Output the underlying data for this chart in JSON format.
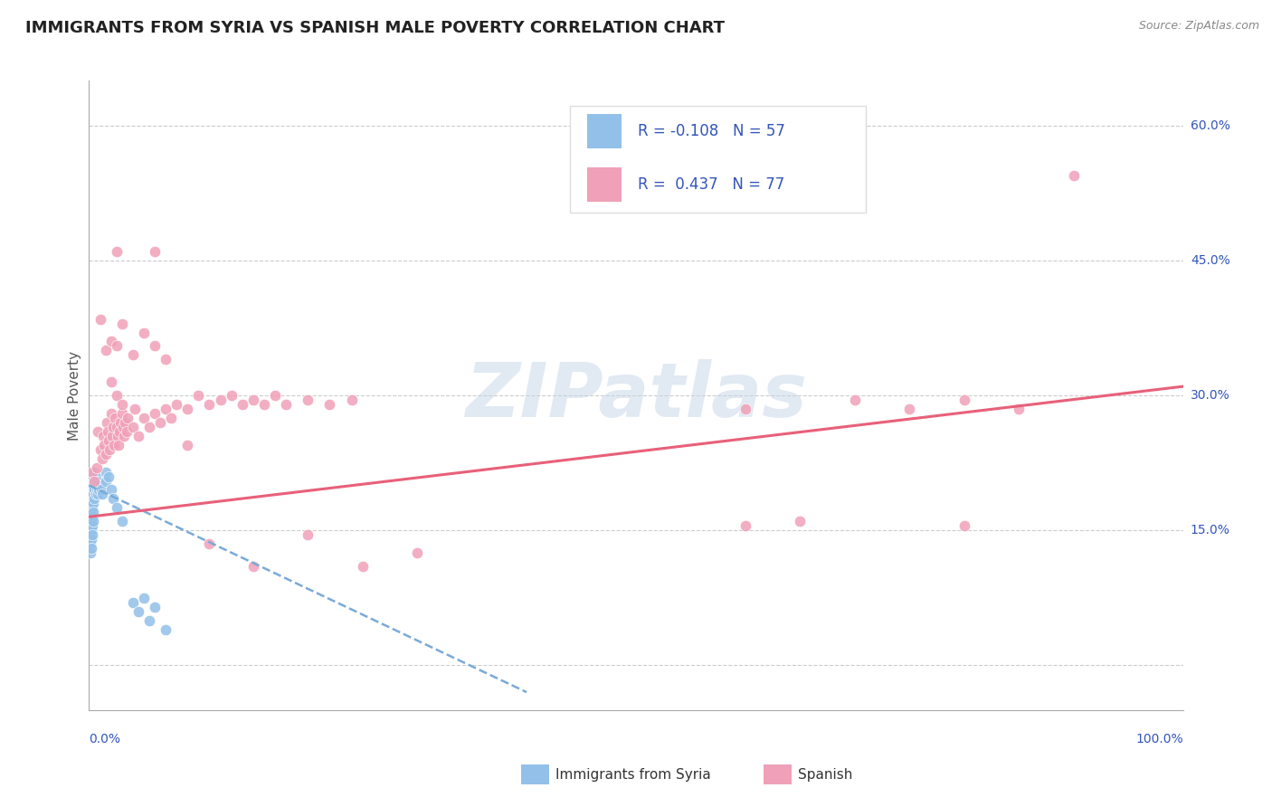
{
  "title": "IMMIGRANTS FROM SYRIA VS SPANISH MALE POVERTY CORRELATION CHART",
  "source": "Source: ZipAtlas.com",
  "ylabel": "Male Poverty",
  "y_ticks": [
    0.0,
    0.15,
    0.3,
    0.45,
    0.6
  ],
  "y_tick_labels": [
    "",
    "15.0%",
    "30.0%",
    "45.0%",
    "60.0%"
  ],
  "x_range": [
    0.0,
    1.0
  ],
  "y_range": [
    -0.05,
    0.65
  ],
  "watermark_text": "ZIPatlas",
  "blue_color": "#92C0E8",
  "pink_color": "#F0A0B8",
  "line_blue_color": "#7AAAD8",
  "line_pink_color": "#E8607A",
  "grid_color": "#CCCCCC",
  "text_blue": "#3355BB",
  "title_color": "#222222",
  "source_color": "#888888",
  "legend_box_color": "#DDDDDD",
  "blue_scatter": [
    [
      0.001,
      0.195
    ],
    [
      0.001,
      0.185
    ],
    [
      0.001,
      0.175
    ],
    [
      0.001,
      0.165
    ],
    [
      0.001,
      0.155
    ],
    [
      0.001,
      0.145
    ],
    [
      0.001,
      0.135
    ],
    [
      0.001,
      0.125
    ],
    [
      0.002,
      0.2
    ],
    [
      0.002,
      0.19
    ],
    [
      0.002,
      0.18
    ],
    [
      0.002,
      0.17
    ],
    [
      0.002,
      0.16
    ],
    [
      0.002,
      0.15
    ],
    [
      0.002,
      0.14
    ],
    [
      0.002,
      0.13
    ],
    [
      0.003,
      0.205
    ],
    [
      0.003,
      0.195
    ],
    [
      0.003,
      0.185
    ],
    [
      0.003,
      0.175
    ],
    [
      0.003,
      0.165
    ],
    [
      0.003,
      0.155
    ],
    [
      0.003,
      0.145
    ],
    [
      0.004,
      0.21
    ],
    [
      0.004,
      0.2
    ],
    [
      0.004,
      0.19
    ],
    [
      0.004,
      0.18
    ],
    [
      0.004,
      0.17
    ],
    [
      0.004,
      0.16
    ],
    [
      0.005,
      0.215
    ],
    [
      0.005,
      0.205
    ],
    [
      0.005,
      0.195
    ],
    [
      0.005,
      0.185
    ],
    [
      0.006,
      0.21
    ],
    [
      0.006,
      0.2
    ],
    [
      0.006,
      0.19
    ],
    [
      0.007,
      0.205
    ],
    [
      0.007,
      0.195
    ],
    [
      0.008,
      0.2
    ],
    [
      0.008,
      0.19
    ],
    [
      0.009,
      0.195
    ],
    [
      0.01,
      0.2
    ],
    [
      0.011,
      0.195
    ],
    [
      0.012,
      0.19
    ],
    [
      0.015,
      0.215
    ],
    [
      0.015,
      0.205
    ],
    [
      0.018,
      0.21
    ],
    [
      0.02,
      0.195
    ],
    [
      0.022,
      0.185
    ],
    [
      0.025,
      0.175
    ],
    [
      0.03,
      0.16
    ],
    [
      0.04,
      0.07
    ],
    [
      0.045,
      0.06
    ],
    [
      0.05,
      0.075
    ],
    [
      0.055,
      0.05
    ],
    [
      0.06,
      0.065
    ],
    [
      0.07,
      0.04
    ]
  ],
  "pink_scatter": [
    [
      0.003,
      0.215
    ],
    [
      0.005,
      0.205
    ],
    [
      0.007,
      0.22
    ],
    [
      0.008,
      0.26
    ],
    [
      0.01,
      0.24
    ],
    [
      0.012,
      0.23
    ],
    [
      0.013,
      0.255
    ],
    [
      0.014,
      0.245
    ],
    [
      0.015,
      0.235
    ],
    [
      0.016,
      0.27
    ],
    [
      0.017,
      0.26
    ],
    [
      0.018,
      0.25
    ],
    [
      0.019,
      0.24
    ],
    [
      0.02,
      0.28
    ],
    [
      0.021,
      0.255
    ],
    [
      0.022,
      0.265
    ],
    [
      0.023,
      0.245
    ],
    [
      0.024,
      0.275
    ],
    [
      0.025,
      0.265
    ],
    [
      0.026,
      0.255
    ],
    [
      0.027,
      0.245
    ],
    [
      0.028,
      0.26
    ],
    [
      0.029,
      0.27
    ],
    [
      0.03,
      0.28
    ],
    [
      0.031,
      0.265
    ],
    [
      0.032,
      0.255
    ],
    [
      0.033,
      0.27
    ],
    [
      0.034,
      0.26
    ],
    [
      0.035,
      0.275
    ],
    [
      0.04,
      0.265
    ],
    [
      0.042,
      0.285
    ],
    [
      0.045,
      0.255
    ],
    [
      0.05,
      0.275
    ],
    [
      0.055,
      0.265
    ],
    [
      0.06,
      0.28
    ],
    [
      0.065,
      0.27
    ],
    [
      0.07,
      0.285
    ],
    [
      0.075,
      0.275
    ],
    [
      0.08,
      0.29
    ],
    [
      0.09,
      0.285
    ],
    [
      0.1,
      0.3
    ],
    [
      0.11,
      0.29
    ],
    [
      0.12,
      0.295
    ],
    [
      0.13,
      0.3
    ],
    [
      0.14,
      0.29
    ],
    [
      0.15,
      0.295
    ],
    [
      0.16,
      0.29
    ],
    [
      0.17,
      0.3
    ],
    [
      0.18,
      0.29
    ],
    [
      0.2,
      0.295
    ],
    [
      0.22,
      0.29
    ],
    [
      0.24,
      0.295
    ],
    [
      0.02,
      0.315
    ],
    [
      0.025,
      0.3
    ],
    [
      0.03,
      0.29
    ],
    [
      0.01,
      0.385
    ],
    [
      0.015,
      0.35
    ],
    [
      0.02,
      0.36
    ],
    [
      0.025,
      0.355
    ],
    [
      0.03,
      0.38
    ],
    [
      0.04,
      0.345
    ],
    [
      0.05,
      0.37
    ],
    [
      0.06,
      0.355
    ],
    [
      0.07,
      0.34
    ],
    [
      0.06,
      0.46
    ],
    [
      0.025,
      0.46
    ],
    [
      0.09,
      0.245
    ],
    [
      0.11,
      0.135
    ],
    [
      0.15,
      0.11
    ],
    [
      0.2,
      0.145
    ],
    [
      0.25,
      0.11
    ],
    [
      0.3,
      0.125
    ],
    [
      0.6,
      0.155
    ],
    [
      0.65,
      0.16
    ],
    [
      0.8,
      0.155
    ],
    [
      0.6,
      0.285
    ],
    [
      0.7,
      0.295
    ],
    [
      0.75,
      0.285
    ],
    [
      0.8,
      0.295
    ],
    [
      0.85,
      0.285
    ],
    [
      0.9,
      0.545
    ]
  ]
}
